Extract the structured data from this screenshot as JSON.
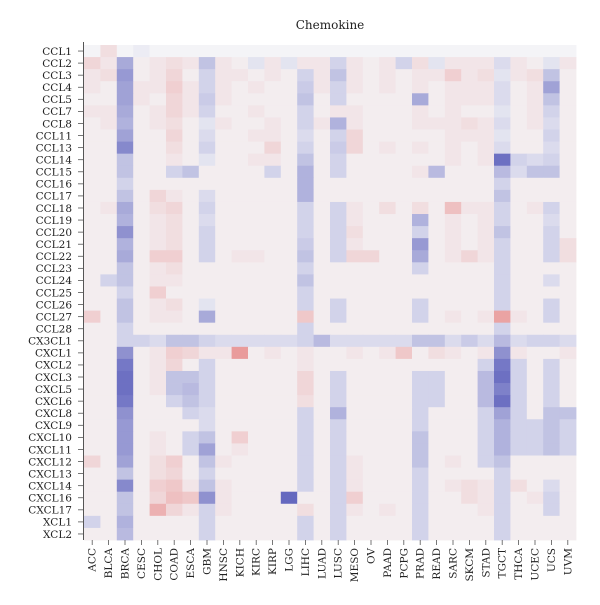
{
  "chart_data": {
    "type": "heatmap",
    "title": "Chemokine",
    "rows": [
      "CCL1",
      "CCL2",
      "CCL3",
      "CCL4",
      "CCL5",
      "CCL7",
      "CCL8",
      "CCL11",
      "CCL13",
      "CCL14",
      "CCL15",
      "CCL16",
      "CCL17",
      "CCL18",
      "CCL19",
      "CCL20",
      "CCL21",
      "CCL22",
      "CCL23",
      "CCL24",
      "CCL25",
      "CCL26",
      "CCL27",
      "CCL28",
      "CX3CL1",
      "CXCL1",
      "CXCL2",
      "CXCL3",
      "CXCL5",
      "CXCL6",
      "CXCL8",
      "CXCL9",
      "CXCL10",
      "CXCL11",
      "CXCL12",
      "CXCL13",
      "CXCL14",
      "CXCL16",
      "CXCL17",
      "XCL1",
      "XCL2"
    ],
    "columns": [
      "ACC",
      "BLCA",
      "BRCA",
      "CESC",
      "CHOL",
      "COAD",
      "ESCA",
      "GBM",
      "HNSC",
      "KICH",
      "KIRC",
      "KIRP",
      "LGG",
      "LIHC",
      "LUAD",
      "LUSC",
      "MESO",
      "OV",
      "PAAD",
      "PCPG",
      "PRAD",
      "READ",
      "SARC",
      "SKCM",
      "STAD",
      "TGCT",
      "THCA",
      "UCEC",
      "UCS",
      "UVM"
    ],
    "color_scale": {
      "negative": "#4b4fb5",
      "neutral": "#f4f4f7",
      "positive": "#e2605e",
      "missing": "#e4e4e4"
    },
    "values": [
      [
        0,
        0.15,
        0,
        -0.05,
        0,
        0,
        0,
        0,
        0,
        0,
        0,
        0,
        0,
        0,
        0,
        0,
        0,
        0,
        0,
        0,
        0,
        0,
        0,
        0,
        0,
        0,
        0,
        0,
        0,
        0
      ],
      [
        0.2,
        0.1,
        -0.45,
        0.05,
        0.1,
        0.15,
        0.1,
        -0.3,
        0.1,
        0.05,
        -0.1,
        0.1,
        -0.1,
        0.1,
        0.1,
        -0.2,
        0.1,
        0.05,
        0.1,
        -0.2,
        0.15,
        -0.1,
        0.1,
        0.1,
        0.1,
        -0.15,
        0.1,
        0.05,
        -0.1,
        0.1
      ],
      [
        0.1,
        0.15,
        -0.55,
        0.05,
        0.1,
        0.2,
        0.05,
        -0.2,
        0.1,
        0.1,
        0.05,
        0.1,
        0.05,
        -0.2,
        0.1,
        -0.3,
        0.1,
        0.05,
        0.1,
        0.05,
        0.1,
        0.1,
        0.25,
        0.1,
        0.15,
        -0.1,
        0.1,
        0.15,
        -0.3,
        0.05
      ],
      [
        0.1,
        0.05,
        -0.5,
        0.1,
        0.1,
        0.25,
        0.1,
        -0.2,
        0.1,
        0.05,
        0.1,
        0.05,
        0.05,
        -0.25,
        0.1,
        -0.2,
        0.1,
        0.05,
        0.1,
        0.05,
        0.1,
        0.05,
        0.1,
        0.1,
        0.1,
        -0.15,
        0.05,
        0.1,
        -0.5,
        0.05
      ],
      [
        0.05,
        0.05,
        -0.5,
        0.1,
        0.05,
        0.2,
        0.1,
        -0.25,
        0.1,
        0.05,
        0.05,
        0.05,
        0.05,
        -0.3,
        0.05,
        -0.2,
        0.05,
        0.05,
        0.05,
        0.05,
        -0.45,
        0.05,
        0.1,
        0.1,
        0.1,
        -0.15,
        0.05,
        0.1,
        -0.3,
        0.05
      ],
      [
        0.1,
        0.1,
        -0.45,
        0.05,
        0.1,
        0.2,
        0.1,
        -0.2,
        0.05,
        0.05,
        0.1,
        0.05,
        0.05,
        -0.2,
        0.05,
        0.1,
        0.1,
        0.05,
        0.05,
        0.05,
        0.1,
        0.05,
        0.1,
        0.05,
        0.05,
        -0.1,
        0.05,
        0.1,
        -0.2,
        0.05
      ],
      [
        0.05,
        0.1,
        -0.4,
        0.05,
        0.1,
        0.15,
        0.05,
        -0.1,
        0.1,
        0.05,
        0.05,
        0.1,
        0.05,
        -0.2,
        0.1,
        -0.4,
        0.1,
        0.05,
        0.05,
        0.05,
        0.1,
        0.1,
        0.1,
        0.15,
        0.1,
        -0.15,
        0.05,
        0.1,
        -0.15,
        0.05
      ],
      [
        0.05,
        0.05,
        -0.5,
        0.05,
        0.05,
        0.2,
        0.05,
        -0.15,
        0.05,
        0.05,
        0.1,
        0.1,
        0.05,
        -0.15,
        0.05,
        -0.2,
        0.2,
        0.05,
        0.05,
        0.05,
        0.05,
        0.05,
        0.1,
        0.1,
        0.1,
        -0.1,
        0.05,
        0.05,
        -0.2,
        0.05
      ],
      [
        0.05,
        0.05,
        -0.65,
        0.05,
        0.05,
        0.15,
        0.05,
        -0.2,
        0.05,
        0.05,
        0.05,
        0.2,
        0.05,
        -0.2,
        0.05,
        -0.25,
        0.2,
        0.05,
        0.1,
        0.05,
        0.1,
        0.05,
        0.1,
        0.05,
        0.1,
        -0.15,
        0.05,
        0.05,
        -0.15,
        0.05
      ],
      [
        0.05,
        0.05,
        -0.3,
        0.05,
        0.05,
        0.1,
        0.05,
        -0.1,
        0.05,
        0.05,
        0.1,
        0.1,
        0.05,
        -0.3,
        0.05,
        -0.2,
        0.05,
        0.05,
        0.05,
        0.05,
        0.05,
        0.05,
        0.1,
        0.05,
        0.1,
        -0.8,
        -0.2,
        -0.15,
        -0.2,
        0.05
      ],
      [
        0.05,
        0.05,
        -0.3,
        0.05,
        0.05,
        -0.2,
        -0.3,
        0.05,
        0.05,
        0.05,
        0.05,
        -0.2,
        0.05,
        -0.4,
        0.05,
        -0.2,
        0.05,
        0.05,
        0.05,
        0.05,
        0.1,
        -0.35,
        0.05,
        0.05,
        0.05,
        -0.35,
        -0.15,
        -0.3,
        -0.3,
        0.05
      ],
      [
        0.05,
        0.05,
        -0.2,
        0.05,
        0.05,
        0.05,
        0.05,
        0.05,
        0.05,
        0.05,
        0.05,
        0.05,
        0.05,
        -0.4,
        0.05,
        0.05,
        0.05,
        0.05,
        0.05,
        0.05,
        0.05,
        0.05,
        0.05,
        0.05,
        0.05,
        -0.2,
        0.05,
        0.05,
        0.05,
        0.05
      ],
      [
        0.05,
        0.05,
        -0.3,
        0.05,
        0.2,
        0.1,
        0.05,
        -0.15,
        0.05,
        0.05,
        0.05,
        0.05,
        0.05,
        -0.4,
        0.05,
        0.05,
        0.05,
        0.05,
        0.05,
        0.05,
        0.05,
        0.05,
        0.05,
        0.05,
        0.05,
        -0.3,
        0.05,
        0.05,
        0.05,
        0.05
      ],
      [
        0.05,
        0.1,
        -0.45,
        0.05,
        0.15,
        0.2,
        0.05,
        -0.2,
        0.05,
        0.05,
        0.05,
        0.05,
        0.05,
        -0.2,
        0.05,
        -0.2,
        0.1,
        0.05,
        0.15,
        0.05,
        0.15,
        0.05,
        0.35,
        0.1,
        0.1,
        -0.2,
        0.05,
        0.1,
        -0.2,
        0.05
      ],
      [
        0.05,
        0.05,
        -0.4,
        0.05,
        0.1,
        0.15,
        0.05,
        -0.15,
        0.05,
        0.05,
        0.05,
        0.05,
        0.05,
        -0.2,
        0.05,
        -0.2,
        0.1,
        0.05,
        0.05,
        0.05,
        -0.4,
        0.05,
        0.1,
        0.05,
        0.1,
        -0.2,
        0.05,
        0.05,
        -0.15,
        0.05
      ],
      [
        0.05,
        0.05,
        -0.6,
        0.05,
        0.1,
        0.15,
        0.05,
        -0.2,
        0.05,
        0.05,
        0.05,
        0.05,
        0.05,
        -0.2,
        0.05,
        -0.2,
        0.15,
        0.05,
        0.05,
        0.05,
        -0.2,
        0.05,
        0.1,
        0.05,
        0.1,
        -0.3,
        0.05,
        0.05,
        -0.2,
        0.05
      ],
      [
        0.05,
        0.05,
        -0.4,
        0.05,
        0.1,
        0.15,
        0.05,
        -0.2,
        0.05,
        0.05,
        0.05,
        0.05,
        0.05,
        -0.25,
        0.05,
        -0.2,
        0.1,
        0.05,
        0.05,
        0.05,
        -0.55,
        0.05,
        0.1,
        0.05,
        0.1,
        -0.2,
        0.05,
        0.05,
        -0.2,
        0.15
      ],
      [
        0.05,
        0.05,
        -0.45,
        0.05,
        0.25,
        0.25,
        0.05,
        -0.2,
        0.05,
        0.1,
        0.1,
        0.05,
        0.05,
        -0.3,
        0.05,
        -0.2,
        0.2,
        0.2,
        0.05,
        0.05,
        -0.45,
        0.05,
        0.1,
        0.2,
        0.1,
        -0.2,
        0.05,
        0.05,
        -0.2,
        0.15
      ],
      [
        0.05,
        0.05,
        -0.3,
        0.05,
        0.1,
        0.15,
        0.05,
        0.05,
        0.05,
        0.05,
        0.05,
        0.05,
        0.05,
        -0.2,
        0.05,
        0.05,
        0.05,
        0.05,
        0.05,
        0.05,
        -0.2,
        0.05,
        0.05,
        0.05,
        0.05,
        -0.2,
        0.05,
        0.05,
        0.05,
        0.05
      ],
      [
        0.05,
        -0.2,
        -0.3,
        0.05,
        0.1,
        0.1,
        0.05,
        0.05,
        0.05,
        0.05,
        0.05,
        0.05,
        0.05,
        -0.3,
        0.05,
        0.05,
        0.05,
        0.05,
        0.05,
        0.05,
        0.05,
        0.05,
        0.05,
        0.05,
        0.05,
        -0.2,
        0.05,
        0.05,
        -0.15,
        0.05
      ],
      [
        0.05,
        0.05,
        -0.2,
        0.05,
        0.25,
        0.05,
        0.05,
        0.05,
        0.05,
        0.05,
        0.05,
        0.05,
        0.05,
        -0.2,
        0.05,
        0.05,
        0.05,
        0.05,
        0.05,
        0.05,
        0.05,
        0.05,
        0.05,
        0.05,
        0.05,
        -0.2,
        0.05,
        0.05,
        0.05,
        0.05
      ],
      [
        0.05,
        0.05,
        -0.3,
        0.05,
        0.1,
        0.15,
        0.05,
        -0.1,
        0.05,
        0.05,
        0.05,
        0.05,
        0.05,
        -0.2,
        0.05,
        -0.2,
        0.05,
        0.05,
        0.05,
        0.05,
        -0.2,
        0.05,
        0.05,
        0.05,
        0.05,
        -0.2,
        0.05,
        0.05,
        -0.2,
        0.05
      ],
      [
        0.25,
        0.05,
        -0.3,
        0.05,
        0.1,
        0.1,
        0.05,
        -0.45,
        0.05,
        0.05,
        0.05,
        0.05,
        0.05,
        0.3,
        0.05,
        -0.2,
        0.05,
        0.05,
        0.05,
        0.05,
        -0.2,
        0.05,
        0.1,
        0.05,
        0.1,
        0.55,
        0.1,
        0.05,
        -0.2,
        0.05
      ],
      [
        0.05,
        0.05,
        -0.2,
        0.05,
        0.05,
        0.05,
        0.05,
        0.05,
        0.05,
        0.05,
        0.05,
        0.05,
        0.05,
        -0.2,
        0.05,
        0.05,
        0.05,
        0.05,
        0.05,
        0.05,
        0.05,
        0.05,
        0.05,
        0.05,
        0.05,
        -0.2,
        0.05,
        0.05,
        0.05,
        0.05
      ],
      [
        0.05,
        0.05,
        -0.2,
        -0.2,
        -0.15,
        -0.3,
        -0.3,
        -0.2,
        -0.15,
        -0.15,
        -0.15,
        -0.15,
        -0.15,
        -0.2,
        -0.35,
        -0.15,
        -0.15,
        -0.15,
        -0.15,
        -0.15,
        -0.3,
        -0.3,
        -0.15,
        -0.25,
        -0.15,
        -0.35,
        -0.15,
        -0.2,
        -0.2,
        -0.15
      ],
      [
        0.05,
        0.05,
        -0.6,
        0.05,
        0.1,
        0.25,
        0.2,
        0.1,
        0.1,
        0.6,
        0.05,
        0.1,
        0.05,
        0.1,
        0.05,
        0.05,
        0.1,
        0.05,
        0.1,
        0.3,
        0.05,
        0.15,
        0.1,
        0.05,
        0.1,
        -0.6,
        0.1,
        0.05,
        0.05,
        0.1
      ],
      [
        0.05,
        0.05,
        -0.75,
        0.05,
        0.1,
        0.2,
        0.05,
        -0.2,
        0.05,
        0.05,
        0.05,
        0.05,
        0.05,
        0.1,
        0.05,
        0.05,
        0.05,
        0.05,
        0.05,
        0.05,
        0.05,
        0.05,
        0.05,
        0.05,
        -0.2,
        -0.75,
        -0.2,
        0.05,
        -0.2,
        0.05
      ],
      [
        0.05,
        0.05,
        -0.8,
        0.05,
        0.1,
        -0.3,
        -0.3,
        -0.2,
        0.05,
        0.05,
        0.05,
        0.05,
        0.05,
        0.2,
        0.05,
        -0.2,
        0.05,
        0.05,
        0.05,
        0.05,
        -0.2,
        -0.2,
        0.05,
        0.05,
        -0.35,
        -0.8,
        -0.2,
        0.05,
        -0.2,
        0.05
      ],
      [
        0.05,
        0.05,
        -0.8,
        0.05,
        0.1,
        -0.3,
        -0.35,
        -0.2,
        0.05,
        0.05,
        0.05,
        0.05,
        0.05,
        0.2,
        0.05,
        -0.2,
        0.05,
        0.05,
        0.05,
        0.05,
        -0.2,
        -0.2,
        0.05,
        0.05,
        -0.35,
        -0.7,
        -0.2,
        0.05,
        -0.2,
        0.05
      ],
      [
        0.05,
        0.05,
        -0.75,
        0.05,
        0.05,
        -0.2,
        -0.3,
        -0.2,
        0.05,
        0.05,
        0.05,
        0.05,
        0.05,
        0.15,
        0.05,
        -0.2,
        0.05,
        0.05,
        0.05,
        0.05,
        -0.2,
        -0.2,
        0.05,
        0.05,
        -0.35,
        -0.8,
        -0.2,
        0.05,
        -0.2,
        0.05
      ],
      [
        0.05,
        0.05,
        -0.6,
        0.05,
        0.05,
        0.05,
        -0.2,
        -0.15,
        0.05,
        0.05,
        0.05,
        0.05,
        0.05,
        -0.2,
        0.05,
        -0.4,
        0.05,
        0.05,
        0.05,
        0.05,
        -0.2,
        0.05,
        0.05,
        0.05,
        -0.2,
        -0.5,
        -0.2,
        0.05,
        -0.3,
        -0.3
      ],
      [
        0.05,
        0.05,
        -0.55,
        0.05,
        0.05,
        0.05,
        0.05,
        -0.15,
        0.05,
        0.05,
        0.05,
        0.05,
        0.05,
        -0.2,
        0.05,
        -0.2,
        0.05,
        0.05,
        0.05,
        0.05,
        -0.2,
        0.05,
        0.05,
        0.05,
        -0.2,
        -0.4,
        -0.2,
        -0.2,
        -0.3,
        -0.2
      ],
      [
        0.05,
        0.05,
        -0.55,
        0.05,
        0.1,
        0.05,
        -0.2,
        -0.3,
        0.05,
        0.25,
        0.05,
        0.05,
        0.05,
        -0.2,
        0.05,
        -0.2,
        0.05,
        0.05,
        0.05,
        0.05,
        -0.3,
        0.05,
        0.05,
        0.05,
        -0.2,
        -0.4,
        -0.2,
        -0.2,
        -0.3,
        -0.2
      ],
      [
        0.05,
        0.05,
        -0.55,
        0.05,
        0.1,
        0.05,
        -0.2,
        -0.5,
        0.05,
        0.1,
        0.05,
        0.05,
        0.05,
        -0.2,
        0.05,
        -0.2,
        0.05,
        0.05,
        0.05,
        0.05,
        -0.3,
        0.05,
        0.05,
        0.05,
        -0.2,
        -0.4,
        -0.2,
        -0.2,
        -0.3,
        -0.2
      ],
      [
        0.2,
        0.05,
        -0.5,
        0.05,
        0.15,
        0.25,
        0.05,
        -0.3,
        0.1,
        0.05,
        0.05,
        0.05,
        0.05,
        -0.2,
        0.05,
        -0.2,
        0.1,
        0.05,
        0.05,
        0.05,
        -0.3,
        0.05,
        0.1,
        0.05,
        -0.2,
        -0.3,
        0.05,
        0.05,
        0.05,
        0.05
      ],
      [
        0.05,
        0.05,
        -0.3,
        0.05,
        0.15,
        0.2,
        0.05,
        -0.2,
        0.05,
        0.05,
        0.05,
        0.05,
        0.05,
        -0.2,
        0.05,
        -0.2,
        0.1,
        0.05,
        0.05,
        0.05,
        -0.2,
        0.05,
        0.05,
        0.05,
        0.05,
        -0.2,
        0.05,
        0.05,
        0.05,
        0.05
      ],
      [
        0.05,
        0.05,
        -0.65,
        0.05,
        0.25,
        0.3,
        0.1,
        -0.3,
        0.1,
        0.05,
        0.05,
        0.05,
        0.05,
        -0.2,
        0.05,
        -0.2,
        0.1,
        0.05,
        0.05,
        0.05,
        -0.2,
        0.05,
        0.1,
        0.15,
        0.1,
        -0.2,
        0.15,
        0.05,
        -0.15,
        0.05
      ],
      [
        0.05,
        0.05,
        -0.3,
        0.05,
        0.2,
        0.35,
        0.3,
        -0.6,
        0.1,
        0.05,
        0.05,
        0.05,
        -0.85,
        0.05,
        0.05,
        -0.2,
        0.25,
        0.05,
        0.05,
        0.05,
        -0.2,
        0.05,
        0.05,
        0.15,
        0.1,
        -0.2,
        0.05,
        0.1,
        -0.2,
        0.05
      ],
      [
        0.05,
        0.05,
        -0.3,
        0.05,
        0.45,
        0.2,
        0.1,
        -0.2,
        0.1,
        0.05,
        0.05,
        0.05,
        0.05,
        0.15,
        0.05,
        -0.2,
        0.1,
        0.05,
        0.1,
        0.05,
        -0.2,
        0.05,
        0.05,
        0.05,
        0.1,
        -0.2,
        0.05,
        0.05,
        -0.2,
        0.05
      ],
      [
        -0.2,
        0.05,
        -0.4,
        0.05,
        0.05,
        0.05,
        0.05,
        -0.2,
        0.05,
        0.05,
        0.05,
        0.05,
        0.05,
        -0.2,
        0.05,
        -0.2,
        0.05,
        0.05,
        0.05,
        0.05,
        -0.2,
        0.05,
        0.05,
        0.05,
        0.05,
        -0.2,
        0.05,
        0.05,
        0.05,
        0.05
      ],
      [
        0.05,
        0.05,
        -0.35,
        0.05,
        0.05,
        0.05,
        0.05,
        -0.2,
        0.05,
        0.05,
        0.05,
        0.05,
        0.05,
        -0.2,
        0.05,
        -0.2,
        0.05,
        0.05,
        0.05,
        0.05,
        -0.2,
        0.05,
        0.05,
        0.05,
        0.05,
        -0.2,
        0.05,
        0.05,
        0.05,
        0.05
      ]
    ]
  }
}
